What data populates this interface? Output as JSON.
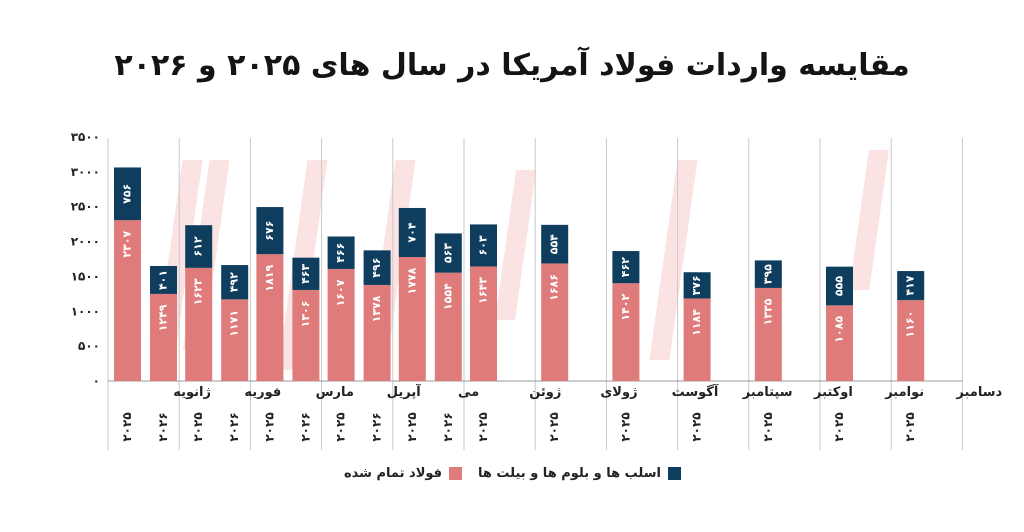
{
  "chart_data": {
    "type": "bar",
    "title": "مقایسه واردات فولاد آمریکا در سال های ۲۰۲۵ و ۲۰۲۶",
    "y_ticks": [
      "۰",
      "۵۰۰",
      "۱۰۰۰",
      "۱۵۰۰",
      "۲۰۰۰",
      "۲۵۰۰",
      "۳۰۰۰",
      "۳۵۰۰"
    ],
    "ylim": [
      0,
      3500
    ],
    "stacked": true,
    "series": [
      {
        "name": "فولاد تمام شده",
        "color": "#e07b7b"
      },
      {
        "name": "اسلب ها و بلوم ها و بیلت ها",
        "color": "#0f3d5e"
      }
    ],
    "groups": [
      {
        "month": "ژانویه",
        "bars": [
          {
            "year": "۲۰۲۵",
            "finished": 2307,
            "finished_label": "۲۳۰۷",
            "semi": 756,
            "semi_label": "۷۵۶"
          },
          {
            "year": "۲۰۲۶",
            "finished": 1249,
            "finished_label": "۱۲۴۹",
            "semi": 401,
            "semi_label": "۴۰۱"
          }
        ]
      },
      {
        "month": "فوریه",
        "bars": [
          {
            "year": "۲۰۲۵",
            "finished": 1623,
            "finished_label": "۱۶۲۳",
            "semi": 612,
            "semi_label": "۶۱۲"
          },
          {
            "year": "۲۰۲۶",
            "finished": 1171,
            "finished_label": "۱۱۷۱",
            "semi": 492,
            "semi_label": "۴۹۲"
          }
        ]
      },
      {
        "month": "مارس",
        "bars": [
          {
            "year": "۲۰۲۵",
            "finished": 1819,
            "finished_label": "۱۸۱۹",
            "semi": 676,
            "semi_label": "۶۷۶"
          },
          {
            "year": "۲۰۲۶",
            "finished": 1306,
            "finished_label": "۱۳۰۶",
            "semi": 463,
            "semi_label": "۴۶۳"
          }
        ]
      },
      {
        "month": "آپریل",
        "bars": [
          {
            "year": "۲۰۲۵",
            "finished": 1607,
            "finished_label": "۱۶۰۷",
            "semi": 466,
            "semi_label": "۴۶۶"
          },
          {
            "year": "۲۰۲۶",
            "finished": 1378,
            "finished_label": "۱۳۷۸",
            "semi": 496,
            "semi_label": "۴۹۶"
          }
        ]
      },
      {
        "month": "می",
        "bars": [
          {
            "year": "۲۰۲۵",
            "finished": 1778,
            "finished_label": "۱۷۷۸",
            "semi": 704,
            "semi_label": "۷۰۴"
          },
          {
            "year": "۲۰۲۶",
            "finished": 1554,
            "finished_label": "۱۵۵۴",
            "semi": 563,
            "semi_label": "۵۶۳"
          }
        ]
      },
      {
        "month": "ژوئن",
        "bars": [
          {
            "year": "۲۰۲۵",
            "finished": 1643,
            "finished_label": "۱۶۴۳",
            "semi": 603,
            "semi_label": "۶۰۳"
          }
        ]
      },
      {
        "month": "ژولای",
        "bars": [
          {
            "year": "۲۰۲۵",
            "finished": 1686,
            "finished_label": "۱۶۸۶",
            "semi": 554,
            "semi_label": "۵۵۴"
          }
        ]
      },
      {
        "month": "آگوست",
        "bars": [
          {
            "year": "۲۰۲۵",
            "finished": 1402,
            "finished_label": "۱۴۰۲",
            "semi": 462,
            "semi_label": "۴۶۲"
          }
        ]
      },
      {
        "month": "سپتامبر",
        "bars": [
          {
            "year": "۲۰۲۵",
            "finished": 1184,
            "finished_label": "۱۱۸۴",
            "semi": 376,
            "semi_label": "۳۷۶"
          }
        ]
      },
      {
        "month": "اوکتبر",
        "bars": [
          {
            "year": "۲۰۲۵",
            "finished": 1335,
            "finished_label": "۱۳۳۵",
            "semi": 395,
            "semi_label": "۳۹۵"
          }
        ]
      },
      {
        "month": "نوامبر",
        "bars": [
          {
            "year": "۲۰۲۵",
            "finished": 1085,
            "finished_label": "۱۰۸۵",
            "semi": 555,
            "semi_label": "۵۵۵"
          }
        ]
      },
      {
        "month": "دسامبر",
        "bars": [
          {
            "year": "۲۰۲۵",
            "finished": 1160,
            "finished_label": "۱۱۶۰",
            "semi": 417,
            "semi_label": "۴۱۷"
          }
        ]
      }
    ],
    "legend": {
      "finished_label": "فولاد تمام شده",
      "semi_label": "اسلب ها و بلوم ها و بیلت ها"
    },
    "grid": "vertical-dividers"
  }
}
